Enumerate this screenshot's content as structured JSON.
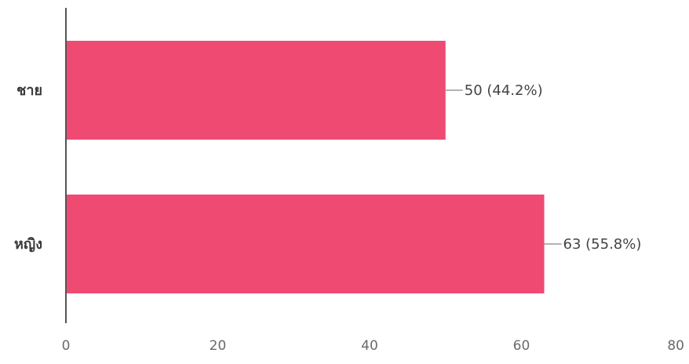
{
  "chart_data": {
    "type": "bar",
    "orientation": "horizontal",
    "categories": [
      "ชาย",
      "หญิง"
    ],
    "values": [
      50,
      63
    ],
    "value_labels": [
      "50 (44.2%)",
      "63 (55.8%)"
    ],
    "xlim": [
      0,
      80
    ],
    "x_ticks": [
      0,
      20,
      40,
      60,
      80
    ],
    "x_tick_labels": [
      "0",
      "20",
      "40",
      "60",
      "80"
    ],
    "grid": false,
    "legend": "none",
    "bar_color": "#ef4a72",
    "axis_color": "#555555"
  }
}
